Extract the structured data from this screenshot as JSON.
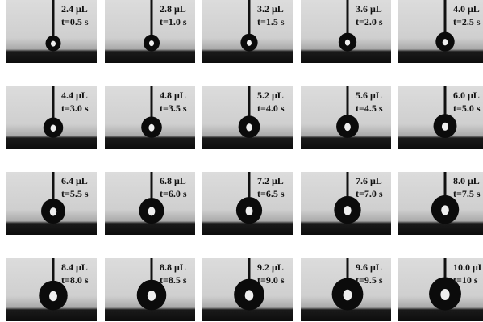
{
  "panels": [
    {
      "volume": "2.4 μL",
      "time": "t=0.5 s"
    },
    {
      "volume": "2.8 μL",
      "time": "t=1.0 s"
    },
    {
      "volume": "3.2 μL",
      "time": "t=1.5 s"
    },
    {
      "volume": "3.6 μL",
      "time": "t=2.0 s"
    },
    {
      "volume": "4.0 μL",
      "time": "t=2.5 s"
    },
    {
      "volume": "4.4 μL",
      "time": "t=3.0 s"
    },
    {
      "volume": "4.8 μL",
      "time": "t=3.5 s"
    },
    {
      "volume": "5.2 μL",
      "time": "t=4.0 s"
    },
    {
      "volume": "5.6 μL",
      "time": "t=4.5 s"
    },
    {
      "volume": "6.0 μL",
      "time": "t=5.0 s"
    },
    {
      "volume": "6.4 μL",
      "time": "t=5.5 s"
    },
    {
      "volume": "6.8 μL",
      "time": "t=6.0 s"
    },
    {
      "volume": "7.2 μL",
      "time": "t=6.5 s"
    },
    {
      "volume": "7.6 μL",
      "time": "t=7.0 s"
    },
    {
      "volume": "8.0 μL",
      "time": "t=7.5 s"
    },
    {
      "volume": "8.4 μL",
      "time": "t=8.0 s"
    },
    {
      "volume": "8.8 μL",
      "time": "t=8.5 s"
    },
    {
      "volume": "9.2 μL",
      "time": "t=9.0 s"
    },
    {
      "volume": "9.6 μL",
      "time": "t=9.5 s"
    },
    {
      "volume": "10.0 μL",
      "time": "t=10 s"
    }
  ]
}
